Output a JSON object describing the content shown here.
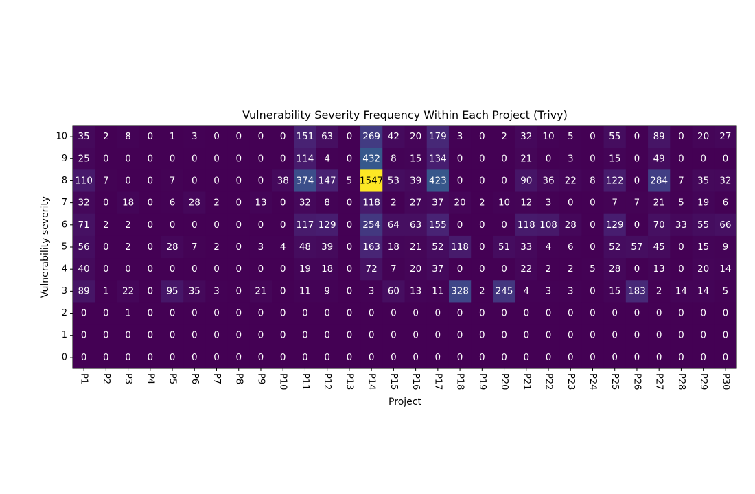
{
  "chart_data": {
    "type": "heatmap",
    "title": "Vulnerability Severity Frequency Within Each Project (Trivy)",
    "xlabel": "Project",
    "ylabel": "Vulnerability severity",
    "x_categories": [
      "P1",
      "P2",
      "P3",
      "P4",
      "P5",
      "P6",
      "P7",
      "P8",
      "P9",
      "P10",
      "P11",
      "P12",
      "P13",
      "P14",
      "P15",
      "P16",
      "P17",
      "P18",
      "P19",
      "P20",
      "P21",
      "P22",
      "P23",
      "P24",
      "P25",
      "P26",
      "P27",
      "P28",
      "P29",
      "P30"
    ],
    "y_categories": [
      "10",
      "9",
      "8",
      "7",
      "6",
      "5",
      "4",
      "3",
      "2",
      "1",
      "0"
    ],
    "values": [
      [
        35,
        2,
        8,
        0,
        1,
        3,
        0,
        0,
        0,
        0,
        151,
        63,
        0,
        269,
        42,
        20,
        179,
        3,
        0,
        2,
        32,
        10,
        5,
        0,
        55,
        0,
        89,
        0,
        20,
        27
      ],
      [
        25,
        0,
        0,
        0,
        0,
        0,
        0,
        0,
        0,
        0,
        114,
        4,
        0,
        432,
        8,
        15,
        134,
        0,
        0,
        0,
        21,
        0,
        3,
        0,
        15,
        0,
        49,
        0,
        0,
        0
      ],
      [
        110,
        7,
        0,
        0,
        7,
        0,
        0,
        0,
        0,
        38,
        374,
        147,
        5,
        1547,
        53,
        39,
        423,
        0,
        0,
        0,
        90,
        36,
        22,
        8,
        122,
        0,
        284,
        7,
        35,
        32
      ],
      [
        32,
        0,
        18,
        0,
        6,
        28,
        2,
        0,
        13,
        0,
        32,
        8,
        0,
        118,
        2,
        27,
        37,
        20,
        2,
        10,
        12,
        3,
        0,
        0,
        7,
        7,
        21,
        5,
        19,
        6
      ],
      [
        71,
        2,
        2,
        0,
        0,
        0,
        0,
        0,
        0,
        0,
        117,
        129,
        0,
        254,
        64,
        63,
        155,
        0,
        0,
        0,
        118,
        108,
        28,
        0,
        129,
        0,
        70,
        33,
        55,
        66
      ],
      [
        56,
        0,
        2,
        0,
        28,
        7,
        2,
        0,
        3,
        4,
        48,
        39,
        0,
        163,
        18,
        21,
        52,
        118,
        0,
        51,
        33,
        4,
        6,
        0,
        52,
        57,
        45,
        0,
        15,
        9
      ],
      [
        40,
        0,
        0,
        0,
        0,
        0,
        0,
        0,
        0,
        0,
        19,
        18,
        0,
        72,
        7,
        20,
        37,
        0,
        0,
        0,
        22,
        2,
        2,
        5,
        28,
        0,
        13,
        0,
        20,
        14
      ],
      [
        89,
        1,
        22,
        0,
        95,
        35,
        3,
        0,
        21,
        0,
        11,
        9,
        0,
        3,
        60,
        13,
        11,
        328,
        2,
        245,
        4,
        3,
        3,
        0,
        15,
        183,
        2,
        14,
        14,
        5
      ],
      [
        0,
        0,
        1,
        0,
        0,
        0,
        0,
        0,
        0,
        0,
        0,
        0,
        0,
        0,
        0,
        0,
        0,
        0,
        0,
        0,
        0,
        0,
        0,
        0,
        0,
        0,
        0,
        0,
        0,
        0
      ],
      [
        0,
        0,
        0,
        0,
        0,
        0,
        0,
        0,
        0,
        0,
        0,
        0,
        0,
        0,
        0,
        0,
        0,
        0,
        0,
        0,
        0,
        0,
        0,
        0,
        0,
        0,
        0,
        0,
        0,
        0
      ],
      [
        0,
        0,
        0,
        0,
        0,
        0,
        0,
        0,
        0,
        0,
        0,
        0,
        0,
        0,
        0,
        0,
        0,
        0,
        0,
        0,
        0,
        0,
        0,
        0,
        0,
        0,
        0,
        0,
        0,
        0
      ]
    ],
    "colormap": "viridis",
    "vmin": 0,
    "vmax": 1547,
    "annotated": true,
    "grid": false,
    "x_tick_rotation": "vertical"
  }
}
